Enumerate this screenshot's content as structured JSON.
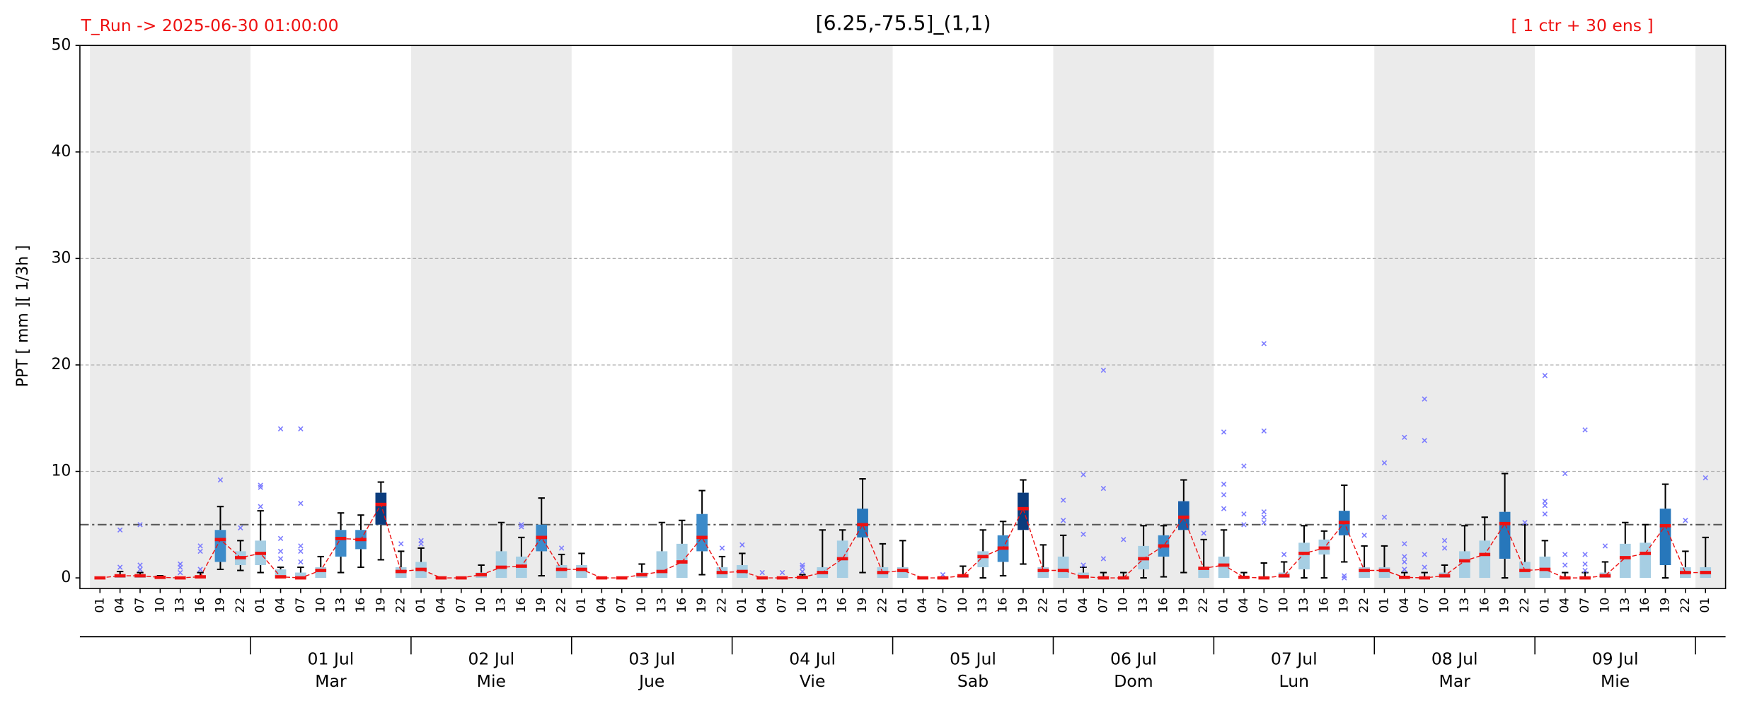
{
  "chart_data": {
    "type": "box",
    "title": "[6.25,-75.5]_(1,1)",
    "run_label": "T_Run -> 2025-06-30  01:00:00",
    "ensemble_label": "[ 1 ctr + 30 ens ]",
    "y_label": "PPT  [ mm ][ 1/3h ]",
    "categories": [
      "01",
      "04",
      "07",
      "10",
      "13",
      "16",
      "19",
      "22",
      "01",
      "04",
      "07",
      "10",
      "13",
      "16",
      "19",
      "22",
      "01",
      "04",
      "07",
      "10",
      "13",
      "16",
      "19",
      "22",
      "01",
      "04",
      "07",
      "10",
      "13",
      "16",
      "19",
      "22",
      "01",
      "04",
      "07",
      "10",
      "13",
      "16",
      "19",
      "22",
      "01",
      "04",
      "07",
      "10",
      "13",
      "16",
      "19",
      "22",
      "01",
      "04",
      "07",
      "10",
      "13",
      "16",
      "19",
      "22",
      "01",
      "04",
      "07",
      "10",
      "13",
      "16",
      "19",
      "22",
      "01",
      "04",
      "07",
      "10",
      "13",
      "16",
      "19",
      "22",
      "01",
      "04",
      "07",
      "10",
      "13",
      "16",
      "19",
      "22",
      "01"
    ],
    "day_labels": [
      [
        "01 Jul",
        "Mar"
      ],
      [
        "02 Jul",
        "Mie"
      ],
      [
        "03 Jul",
        "Jue"
      ],
      [
        "04 Jul",
        "Vie"
      ],
      [
        "05 Jul",
        "Sab"
      ],
      [
        "06 Jul",
        "Dom"
      ],
      [
        "07 Jul",
        "Lun"
      ],
      [
        "08 Jul",
        "Mar"
      ],
      [
        "09 Jul",
        "Mie"
      ]
    ],
    "whisker_low": [
      0,
      0,
      0,
      0,
      0,
      0,
      0.8,
      0.7,
      0.5,
      0,
      0,
      0,
      0.5,
      1,
      1.7,
      0,
      0,
      0,
      0,
      0,
      0,
      0,
      0.2,
      0,
      0,
      0,
      0,
      0,
      0,
      0,
      0.3,
      0,
      0,
      0,
      0,
      0,
      0,
      0,
      0.5,
      0,
      0,
      0,
      0,
      0,
      0,
      0.2,
      1.3,
      0,
      0,
      0,
      0,
      0,
      0,
      0.1,
      0.5,
      0,
      0,
      0,
      0,
      0,
      0,
      0,
      1.5,
      0,
      0,
      0,
      0,
      0,
      0,
      0,
      0,
      0,
      0,
      0,
      0,
      0,
      0,
      0,
      0,
      0,
      0
    ],
    "q1": [
      0,
      0,
      0,
      0,
      0,
      0,
      1.5,
      1.2,
      1.2,
      0,
      0,
      0,
      2,
      2.7,
      5,
      0,
      0,
      0,
      0,
      0,
      0,
      0,
      2.5,
      0,
      0,
      0,
      0,
      0,
      0,
      0,
      2.5,
      0,
      0,
      0,
      0,
      0,
      0,
      0,
      3.8,
      0,
      0,
      0,
      0,
      0,
      1,
      1.5,
      4.5,
      0,
      0,
      0,
      0,
      0,
      0.8,
      2,
      4.5,
      0,
      0,
      0,
      0,
      0,
      0.8,
      2.2,
      4,
      0,
      0,
      0,
      0,
      0,
      0,
      0,
      1.8,
      0,
      0,
      0,
      0,
      0,
      0,
      0,
      1.2,
      0,
      0
    ],
    "q3": [
      0,
      0.3,
      0.3,
      0,
      0,
      0.2,
      4.5,
      2.5,
      3.5,
      0.8,
      0.5,
      1,
      4.5,
      4.5,
      8,
      1,
      1.5,
      0,
      0,
      0.5,
      2.5,
      2,
      5,
      1.2,
      1.2,
      0,
      0,
      0.5,
      2.5,
      3.2,
      6,
      1,
      1.2,
      0,
      0,
      0,
      1,
      3.5,
      6.5,
      1,
      1,
      0,
      0,
      0.3,
      2.5,
      4,
      8,
      1,
      2,
      0.5,
      0,
      0,
      3,
      4,
      7.2,
      1,
      2,
      0,
      0,
      0.5,
      3.3,
      3.6,
      6.3,
      1,
      1,
      0,
      0,
      0.5,
      2.5,
      3.5,
      6.2,
      1.5,
      2,
      0,
      0,
      0.5,
      3.2,
      3.3,
      6.5,
      1,
      1
    ],
    "whisker_high": [
      0,
      0.6,
      0.5,
      0.2,
      0,
      0.5,
      6.7,
      3.5,
      6.3,
      1,
      1,
      2,
      6.1,
      5.9,
      9,
      2.5,
      2.8,
      0,
      0,
      1.2,
      5.2,
      3.8,
      7.5,
      2.2,
      2.3,
      0,
      0,
      1.3,
      5.2,
      5.4,
      8.2,
      2,
      2.3,
      0,
      0,
      0.3,
      4.5,
      4.5,
      9.3,
      3.2,
      3.5,
      0,
      0,
      1.1,
      4.5,
      5.3,
      9.2,
      3.1,
      4,
      1,
      0.5,
      0.5,
      4.9,
      4.9,
      9.2,
      3.6,
      4.5,
      0.5,
      1.4,
      1.5,
      4.9,
      4.4,
      8.7,
      3,
      3,
      0.5,
      0.5,
      1.2,
      4.9,
      5.7,
      9.8,
      5,
      3.5,
      0.5,
      0.5,
      1.5,
      5.2,
      5,
      8.8,
      2.5,
      3.8
    ],
    "mean": [
      0,
      0.2,
      0.2,
      0.05,
      0,
      0.1,
      3.6,
      1.9,
      2.3,
      0.1,
      0,
      0.7,
      3.7,
      3.6,
      6.9,
      0.6,
      0.8,
      0,
      0,
      0.3,
      1,
      1.1,
      3.8,
      0.8,
      0.8,
      0,
      0,
      0.3,
      0.6,
      1.5,
      3.8,
      0.5,
      0.6,
      0,
      0,
      0.05,
      0.5,
      1.8,
      5,
      0.5,
      0.7,
      0,
      0,
      0.2,
      2,
      2.8,
      6.5,
      0.7,
      0.7,
      0.1,
      0,
      0,
      1.8,
      3,
      5.7,
      0.9,
      1.2,
      0.05,
      0,
      0.2,
      2.3,
      2.8,
      5.2,
      0.7,
      0.7,
      0.05,
      0,
      0.2,
      1.6,
      2.2,
      5.1,
      0.7,
      0.8,
      0,
      0,
      0.2,
      1.9,
      2.3,
      4.9,
      0.5,
      0.5
    ],
    "outliers": [
      [],
      [
        1,
        4.5
      ],
      [
        0.8,
        1.2,
        5
      ],
      [],
      [
        0.5,
        1,
        1.3
      ],
      [
        0.8,
        2.5,
        3
      ],
      [
        9.2
      ],
      [
        4.7
      ],
      [
        6.7,
        8.5,
        8.7
      ],
      [
        1.8,
        2.5,
        3.7,
        14
      ],
      [
        1.5,
        2.5,
        3,
        7,
        14
      ],
      [],
      [],
      [],
      [],
      [
        3.2
      ],
      [
        3.2,
        3.5
      ],
      [],
      [],
      [],
      [],
      [
        4.8,
        5
      ],
      [],
      [
        2.8
      ],
      [],
      [],
      [],
      [],
      [],
      [],
      [],
      [
        2.8
      ],
      [
        3.1
      ],
      [
        0.5
      ],
      [
        0.5
      ],
      [
        0.6,
        1,
        1.2
      ],
      [],
      [],
      [],
      [],
      [],
      [],
      [
        0.3
      ],
      [],
      [],
      [],
      [],
      [],
      [
        5.4,
        7.3
      ],
      [
        1.2,
        4.1,
        9.7
      ],
      [
        1.8,
        8.4,
        19.5
      ],
      [
        3.6
      ],
      [],
      [],
      [],
      [
        4.2
      ],
      [
        6.5,
        7.8,
        8.8,
        13.7
      ],
      [
        5,
        6,
        10.5
      ],
      [
        5.2,
        5.7,
        6.2,
        13.8,
        22
      ],
      [
        2.2
      ],
      [],
      [],
      [
        0,
        0.2
      ],
      [
        4
      ],
      [
        5.7,
        10.8
      ],
      [
        0.8,
        1.5,
        2,
        3.2,
        13.2
      ],
      [
        1,
        2.2,
        12.9,
        16.8
      ],
      [
        2.8,
        3.5
      ],
      [],
      [],
      [],
      [
        5.2
      ],
      [
        6,
        6.8,
        7.2,
        19
      ],
      [
        1.2,
        2.2,
        9.8
      ],
      [
        0.7,
        1.3,
        2.2,
        13.9
      ],
      [
        3
      ],
      [],
      [],
      [],
      [
        5.4
      ],
      [
        9.4
      ]
    ],
    "box_colors": [
      "#a6cee3",
      "#a6cee3",
      "#a6cee3",
      "#a6cee3",
      "#a6cee3",
      "#a6cee3",
      "#3d8bc9",
      "#a6cee3",
      "#a6cee3",
      "#a6cee3",
      "#a6cee3",
      "#a6cee3",
      "#3d8bc9",
      "#3d8bc9",
      "#0b3c7d",
      "#a6cee3",
      "#a6cee3",
      "#a6cee3",
      "#a6cee3",
      "#a6cee3",
      "#a6cee3",
      "#a6cee3",
      "#3d8bc9",
      "#a6cee3",
      "#a6cee3",
      "#a6cee3",
      "#a6cee3",
      "#a6cee3",
      "#a6cee3",
      "#a6cee3",
      "#3d8bc9",
      "#a6cee3",
      "#a6cee3",
      "#a6cee3",
      "#a6cee3",
      "#a6cee3",
      "#a6cee3",
      "#a6cee3",
      "#2777bb",
      "#a6cee3",
      "#a6cee3",
      "#a6cee3",
      "#a6cee3",
      "#a6cee3",
      "#a6cee3",
      "#3d8bc9",
      "#0b3c7d",
      "#a6cee3",
      "#a6cee3",
      "#a6cee3",
      "#a6cee3",
      "#a6cee3",
      "#a6cee3",
      "#3d8bc9",
      "#1a5ea8",
      "#a6cee3",
      "#a6cee3",
      "#a6cee3",
      "#a6cee3",
      "#a6cee3",
      "#a6cee3",
      "#a6cee3",
      "#2777bb",
      "#a6cee3",
      "#a6cee3",
      "#a6cee3",
      "#a6cee3",
      "#a6cee3",
      "#a6cee3",
      "#a6cee3",
      "#2777bb",
      "#a6cee3",
      "#a6cee3",
      "#a6cee3",
      "#a6cee3",
      "#a6cee3",
      "#a6cee3",
      "#a6cee3",
      "#2777bb",
      "#a6cee3",
      "#a6cee3"
    ],
    "mean_color": "#ee1111",
    "outlier_color": "#7b7bff",
    "threshold": 5,
    "threshold_color": "#555555",
    "shade_color": "#ebebeb",
    "grid": true,
    "ylim": [
      -1,
      50
    ],
    "yticks": [
      0,
      10,
      20,
      30,
      40,
      50
    ]
  }
}
